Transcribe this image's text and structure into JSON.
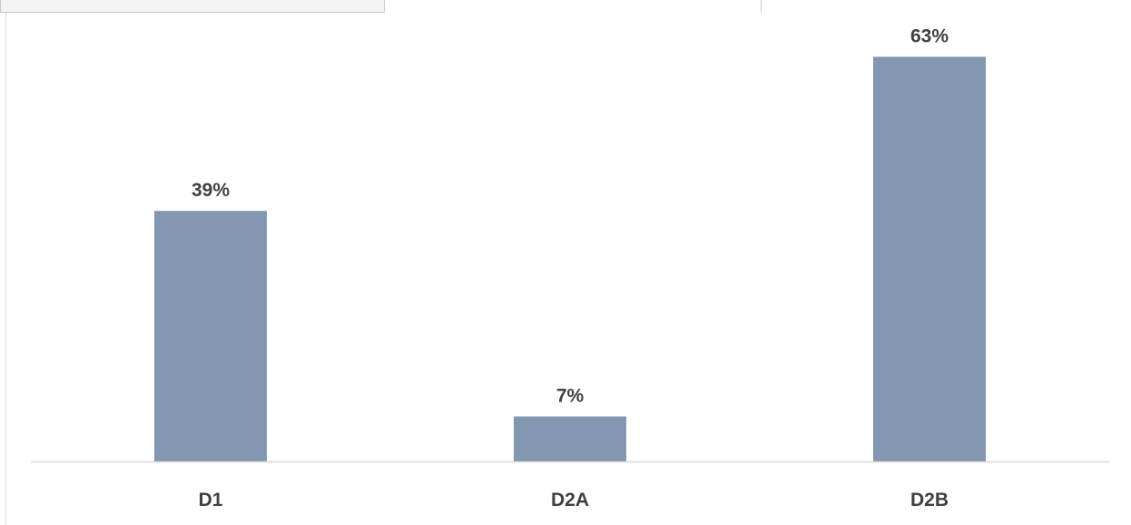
{
  "chart_data": {
    "type": "bar",
    "categories": [
      "D1",
      "D2A",
      "D2B"
    ],
    "values": [
      39,
      7,
      63
    ],
    "value_labels": [
      "39%",
      "7%",
      "63%"
    ],
    "unit": "%",
    "ylim": [
      0,
      70
    ],
    "grid": false,
    "legend": "none",
    "bar_color": "#8497b0",
    "axis_color": "#d9d9d9",
    "label_color": "#404040"
  }
}
